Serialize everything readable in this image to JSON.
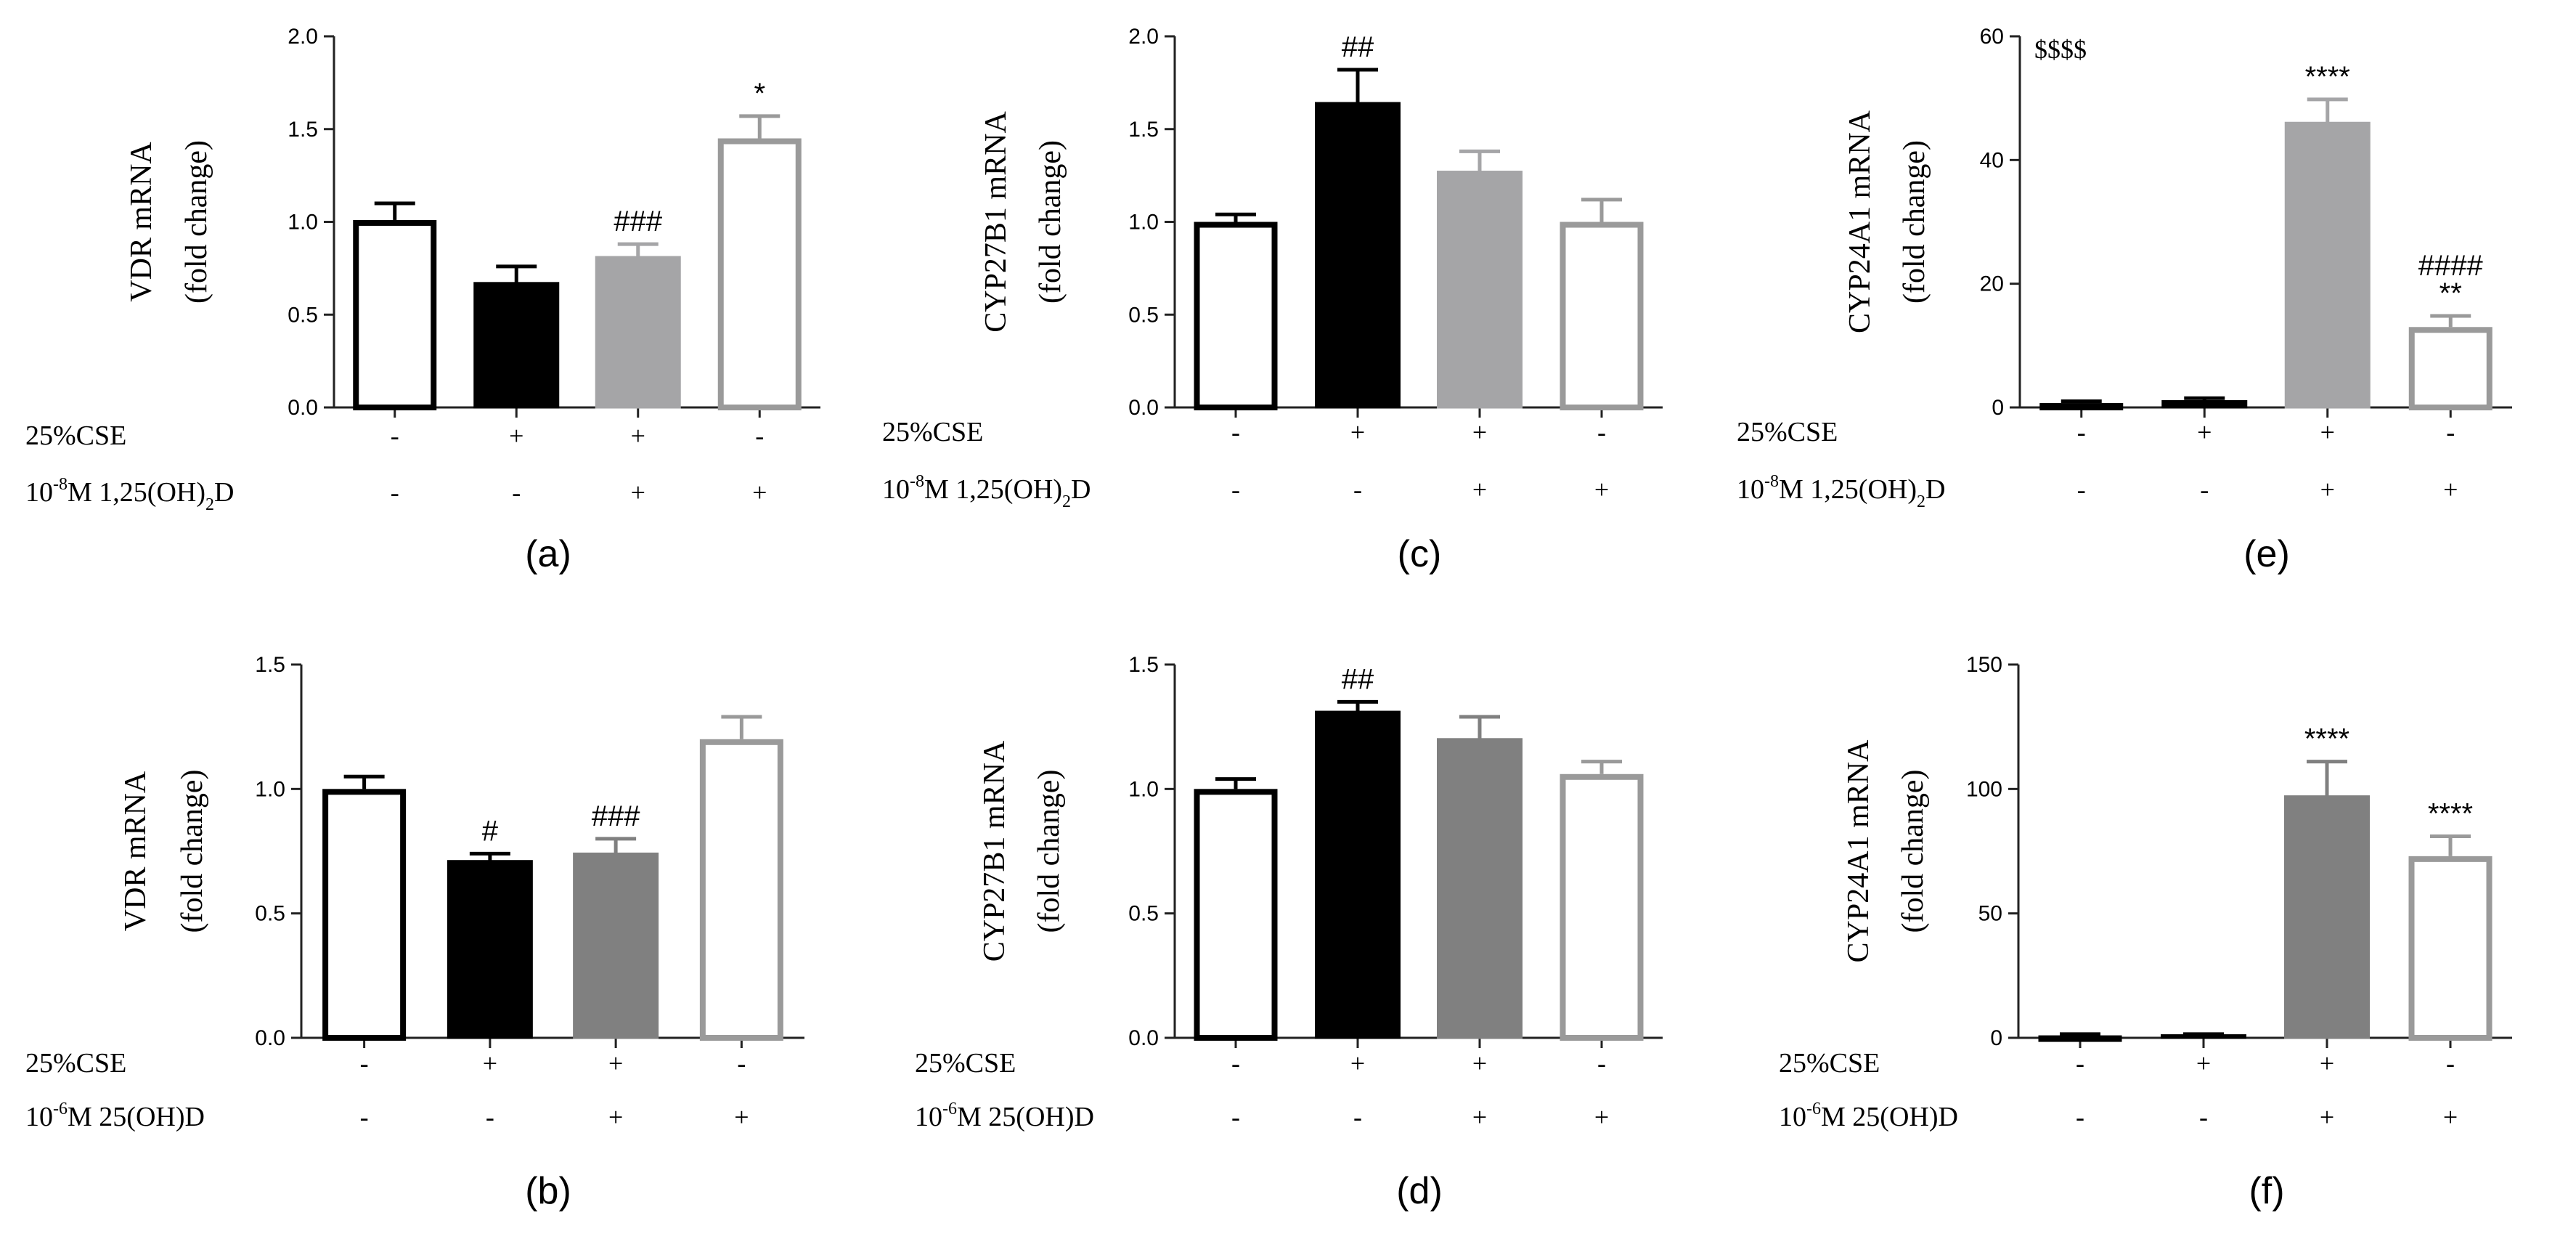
{
  "chart_data": [
    {
      "id": "a",
      "panel_label": "(a)",
      "type": "bar",
      "ylabel": [
        "VDR mRNA",
        "(fold change)"
      ],
      "ylim": [
        0,
        2.0
      ],
      "yticks": [
        0.0,
        0.5,
        1.0,
        1.5,
        2.0
      ],
      "tick_labels": [
        "0.0",
        "0.5",
        "1.0",
        "1.5",
        "2.0"
      ],
      "values": [
        1.01,
        0.67,
        0.81,
        1.45
      ],
      "errors": [
        0.09,
        0.09,
        0.07,
        0.12
      ],
      "styles": [
        "open-black",
        "solid-black",
        "solid-gray",
        "open-gray"
      ],
      "annotations": [
        "",
        "",
        "###",
        "*"
      ],
      "corner_text": "",
      "treatment_rows": [
        {
          "label": "25%CSE",
          "values": [
            "-",
            "+",
            "+",
            "-"
          ]
        },
        {
          "label_parts": [
            "10",
            "-8",
            "M 1,25(OH)",
            "2",
            "D"
          ],
          "values": [
            "-",
            "-",
            "+",
            "+"
          ]
        }
      ]
    },
    {
      "id": "c",
      "panel_label": "(c)",
      "type": "bar",
      "ylabel": [
        "CYP27B1 mRNA",
        "(fold change)"
      ],
      "ylim": [
        0,
        2.0
      ],
      "yticks": [
        0.0,
        0.5,
        1.0,
        1.5,
        2.0
      ],
      "tick_labels": [
        "0.0",
        "0.5",
        "1.0",
        "1.5",
        "2.0"
      ],
      "values": [
        1.0,
        1.64,
        1.27,
        1.0
      ],
      "errors": [
        0.04,
        0.18,
        0.11,
        0.12
      ],
      "styles": [
        "open-black",
        "solid-black",
        "solid-gray",
        "open-gray"
      ],
      "annotations": [
        "",
        "##",
        "",
        ""
      ],
      "corner_text": "",
      "treatment_rows": [
        {
          "label": "25%CSE",
          "values": [
            "-",
            "+",
            "+",
            "-"
          ]
        },
        {
          "label_parts": [
            "10",
            "-8",
            "M 1,25(OH)",
            "2",
            "D"
          ],
          "values": [
            "-",
            "-",
            "+",
            "+"
          ]
        }
      ]
    },
    {
      "id": "e",
      "panel_label": "(e)",
      "type": "bar",
      "ylabel": [
        "CYP24A1 mRNA",
        "(fold change)"
      ],
      "ylim": [
        0,
        60
      ],
      "yticks": [
        0,
        20,
        40,
        60
      ],
      "tick_labels": [
        "0",
        "20",
        "40",
        "60"
      ],
      "values": [
        0.7,
        1.0,
        46,
        13
      ],
      "errors": [
        0.3,
        0.5,
        3.8,
        1.8
      ],
      "styles": [
        "open-black",
        "solid-black",
        "solid-gray",
        "open-gray"
      ],
      "annotations": [
        "",
        "",
        "****",
        "####\n**"
      ],
      "corner_text": "$$$$",
      "treatment_rows": [
        {
          "label": "25%CSE",
          "values": [
            "-",
            "+",
            "+",
            "-"
          ]
        },
        {
          "label_parts": [
            "10",
            "-8",
            "M 1,25(OH)",
            "2",
            "D"
          ],
          "values": [
            "-",
            "-",
            "+",
            "+"
          ]
        }
      ]
    },
    {
      "id": "b",
      "panel_label": "(b)",
      "type": "bar",
      "ylabel": [
        "VDR mRNA",
        "(fold change)"
      ],
      "ylim": [
        0,
        1.5
      ],
      "yticks": [
        0.0,
        0.5,
        1.0,
        1.5
      ],
      "tick_labels": [
        "0.0",
        "0.5",
        "1.0",
        "1.5"
      ],
      "values": [
        1.0,
        0.71,
        0.74,
        1.2
      ],
      "errors": [
        0.05,
        0.03,
        0.06,
        0.09
      ],
      "styles": [
        "open-black",
        "solid-black",
        "solid-darkgray",
        "open-gray"
      ],
      "annotations": [
        "",
        "#",
        "###",
        ""
      ],
      "corner_text": "",
      "treatment_rows": [
        {
          "label": "25%CSE",
          "values": [
            "-",
            "+",
            "+",
            "-"
          ]
        },
        {
          "label_parts": [
            "10",
            "-6",
            "M 25(OH)D",
            "",
            ""
          ],
          "values": [
            "-",
            "-",
            "+",
            "+"
          ]
        }
      ]
    },
    {
      "id": "d",
      "panel_label": "(d)",
      "type": "bar",
      "ylabel": [
        "CYP27B1 mRNA",
        "(fold change)"
      ],
      "ylim": [
        0,
        1.5
      ],
      "yticks": [
        0.0,
        0.5,
        1.0,
        1.5
      ],
      "tick_labels": [
        "0.0",
        "0.5",
        "1.0",
        "1.5"
      ],
      "values": [
        1.0,
        1.31,
        1.2,
        1.06
      ],
      "errors": [
        0.04,
        0.04,
        0.09,
        0.05
      ],
      "styles": [
        "open-black",
        "solid-black",
        "solid-darkgray",
        "open-gray"
      ],
      "annotations": [
        "",
        "##",
        "",
        ""
      ],
      "corner_text": "",
      "treatment_rows": [
        {
          "label": "25%CSE",
          "values": [
            "-",
            "+",
            "+",
            "-"
          ]
        },
        {
          "label_parts": [
            "10",
            "-6",
            "M 25(OH)D",
            "",
            ""
          ],
          "values": [
            "-",
            "-",
            "+",
            "+"
          ]
        }
      ]
    },
    {
      "id": "f",
      "panel_label": "(f)",
      "type": "bar",
      "ylabel": [
        "CYP24A1 mRNA",
        "(fold change)"
      ],
      "ylim": [
        0,
        150
      ],
      "yticks": [
        0,
        50,
        100,
        150
      ],
      "tick_labels": [
        "0",
        "50",
        "100",
        "150"
      ],
      "values": [
        1,
        1,
        97,
        73
      ],
      "errors": [
        0.5,
        0.5,
        14,
        8
      ],
      "styles": [
        "open-black",
        "solid-black",
        "solid-darkgray",
        "open-gray"
      ],
      "annotations": [
        "",
        "",
        "****",
        "****"
      ],
      "corner_text": "",
      "treatment_rows": [
        {
          "label": "25%CSE",
          "values": [
            "-",
            "+",
            "+",
            "-"
          ]
        },
        {
          "label_parts": [
            "10",
            "-6",
            "M 25(OH)D",
            "",
            ""
          ],
          "values": [
            "-",
            "-",
            "+",
            "+"
          ]
        }
      ]
    }
  ],
  "colors": {
    "black": "#000000",
    "gray": "#a5a5a7",
    "darkgray": "#808080",
    "open_gray": "#9a9a9a",
    "axis": "#222222"
  }
}
